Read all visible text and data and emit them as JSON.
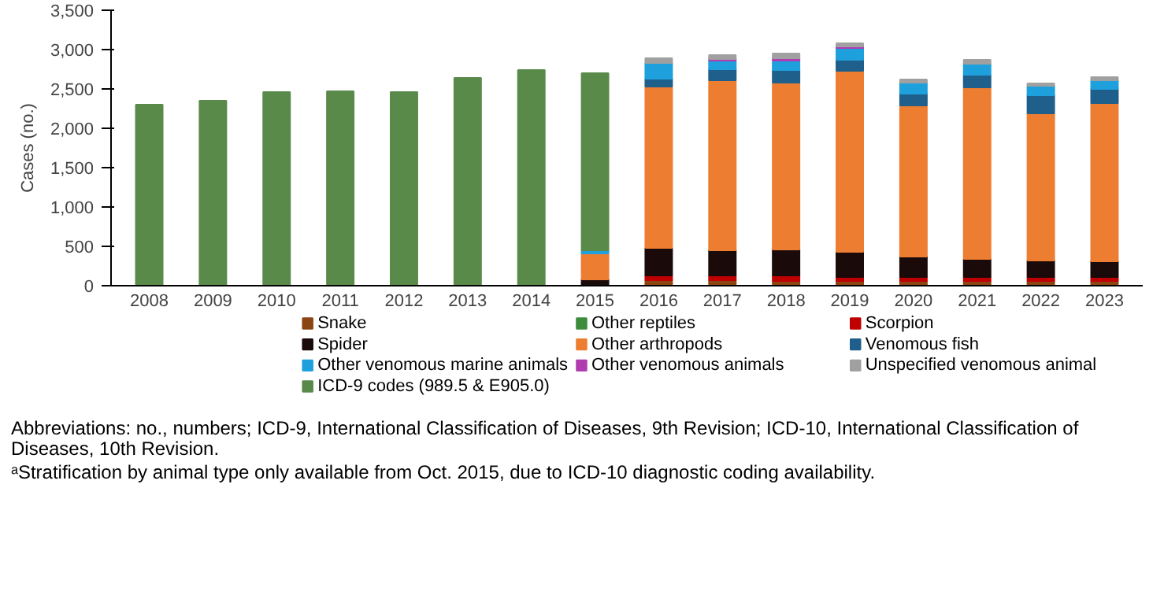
{
  "chart_data": {
    "type": "bar",
    "stacked": true,
    "ylabel": "Cases (no.)",
    "categories": [
      "2008",
      "2009",
      "2010",
      "2011",
      "2012",
      "2013",
      "2014",
      "2015",
      "2016",
      "2017",
      "2018",
      "2019",
      "2020",
      "2021",
      "2022",
      "2023"
    ],
    "ylim": [
      0,
      3500
    ],
    "yticks": [
      0,
      500,
      {
        "value": 1000,
        "label": "1,000"
      },
      {
        "value": 1500,
        "label": "1,500"
      },
      {
        "value": 2000,
        "label": "2,000"
      },
      {
        "value": 2500,
        "label": "2,500"
      },
      {
        "value": 3000,
        "label": "3,000"
      },
      {
        "value": 3500,
        "label": "3,500"
      }
    ],
    "grid": false,
    "legend": "bottom",
    "series": [
      {
        "name": "Snake",
        "color": "#8b4513",
        "values": [
          null,
          null,
          null,
          null,
          null,
          null,
          null,
          null,
          70,
          70,
          60,
          60,
          60,
          60,
          60,
          60
        ]
      },
      {
        "name": "Other reptiles",
        "color": "#3c8c3c",
        "values": [
          null,
          null,
          null,
          null,
          null,
          null,
          null,
          null,
          null,
          null,
          null,
          null,
          null,
          null,
          null,
          null
        ]
      },
      {
        "name": "Scorpion",
        "color": "#c00000",
        "values": [
          null,
          null,
          null,
          null,
          null,
          null,
          null,
          null,
          60,
          60,
          70,
          50,
          50,
          50,
          50,
          50
        ]
      },
      {
        "name": "Spider",
        "color": "#1a0a0a",
        "values": [
          null,
          null,
          null,
          null,
          null,
          null,
          null,
          80,
          350,
          320,
          330,
          320,
          260,
          230,
          210,
          200
        ]
      },
      {
        "name": "Other arthropods",
        "color": "#ed7d31",
        "values": [
          null,
          null,
          null,
          null,
          null,
          null,
          null,
          330,
          2050,
          2160,
          2120,
          2300,
          1920,
          2180,
          1870,
          2010
        ]
      },
      {
        "name": "Venomous fish",
        "color": "#1f5f8b",
        "values": [
          null,
          null,
          null,
          null,
          null,
          null,
          null,
          null,
          100,
          140,
          160,
          140,
          150,
          160,
          230,
          180
        ]
      },
      {
        "name": "Other venomous marine animals",
        "color": "#1ea0dc",
        "values": [
          null,
          null,
          null,
          null,
          null,
          null,
          null,
          40,
          200,
          110,
          120,
          150,
          140,
          140,
          120,
          110
        ]
      },
      {
        "name": "Other venomous animals",
        "color": "#b03cb0",
        "values": [
          null,
          null,
          null,
          null,
          null,
          null,
          null,
          null,
          null,
          20,
          30,
          20,
          null,
          null,
          null,
          null
        ]
      },
      {
        "name": "Unspecified venomous animal",
        "color": "#a0a0a0",
        "values": [
          null,
          null,
          null,
          null,
          null,
          null,
          null,
          null,
          60,
          50,
          60,
          40,
          40,
          50,
          30,
          40
        ]
      },
      {
        "name": "ICD-9 codes (989.5 & E905.0)",
        "color": "#5a8a4a",
        "values": [
          2300,
          2350,
          2460,
          2470,
          2460,
          2640,
          2740,
          2250,
          null,
          null,
          null,
          null,
          null,
          null,
          null,
          null
        ]
      }
    ],
    "annotations": [
      "Abbreviations: no., numbers; ICD-9, International Classification of Diseases, 9th Revision; ICD-10, International Classification of Diseases, 10th Revision.",
      "ᵃStratification by animal type only available from Oct. 2015, due to ICD-10 diagnostic coding availability."
    ]
  }
}
